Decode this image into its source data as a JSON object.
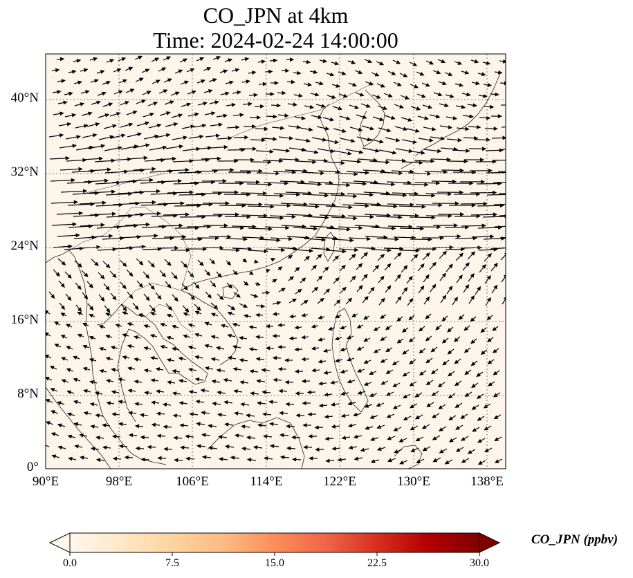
{
  "title_line1": "CO_JPN at 4km",
  "title_line2": "Time: 2024-02-24 14:00:00",
  "lat_ticks": [
    "0°",
    "8°N",
    "16°N",
    "24°N",
    "32°N",
    "40°N"
  ],
  "lon_ticks": [
    "90°E",
    "98°E",
    "106°E",
    "114°E",
    "122°E",
    "130°E",
    "138°E"
  ],
  "colorbar": {
    "label": "CO_JPN (ppbv)",
    "ticks": [
      "0.0",
      "7.5",
      "15.0",
      "22.5",
      "30.0"
    ],
    "range": [
      0.0,
      30.0
    ],
    "colormap": "OrRd",
    "extend": "both"
  },
  "map_extent": {
    "lon": [
      90,
      140
    ],
    "lat": [
      0,
      45
    ]
  },
  "gridlines": true,
  "background_color": "#fdf5ea",
  "field": "wind vectors (quiver) over CO concentration"
}
